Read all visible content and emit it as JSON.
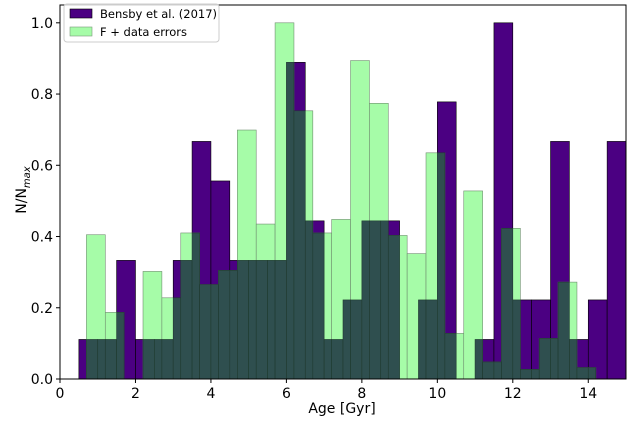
{
  "chart_data": {
    "type": "bar",
    "xlabel": "Age [Gyr]",
    "ylabel": "N/N",
    "ylabel_subscript": "max",
    "xlim": [
      0,
      15
    ],
    "ylim": [
      0,
      1.05
    ],
    "xticks": [
      0,
      2,
      4,
      6,
      8,
      10,
      12,
      14
    ],
    "yticks": [
      0.0,
      0.2,
      0.4,
      0.6,
      0.8,
      1.0
    ],
    "xtick_labels": [
      "0",
      "2",
      "4",
      "6",
      "8",
      "10",
      "12",
      "14"
    ],
    "ytick_labels": [
      "0.0",
      "0.2",
      "0.4",
      "0.6",
      "0.8",
      "1.0"
    ],
    "legend_position": "top-left",
    "grid": false,
    "bin_width": 0.5,
    "series": [
      {
        "name": "Bensby et al. (2017)",
        "color": "#4b0082",
        "bins": [
          {
            "x": 0.5,
            "value": 0.111
          },
          {
            "x": 1.0,
            "value": 0.111
          },
          {
            "x": 1.5,
            "value": 0.333
          },
          {
            "x": 2.0,
            "value": 0.111
          },
          {
            "x": 2.5,
            "value": 0.111
          },
          {
            "x": 3.0,
            "value": 0.333
          },
          {
            "x": 3.5,
            "value": 0.667
          },
          {
            "x": 4.0,
            "value": 0.556
          },
          {
            "x": 4.5,
            "value": 0.333
          },
          {
            "x": 5.0,
            "value": 0.333
          },
          {
            "x": 5.5,
            "value": 0.333
          },
          {
            "x": 6.0,
            "value": 0.889
          },
          {
            "x": 6.5,
            "value": 0.444
          },
          {
            "x": 7.0,
            "value": 0.111
          },
          {
            "x": 7.5,
            "value": 0.222
          },
          {
            "x": 8.0,
            "value": 0.444
          },
          {
            "x": 8.5,
            "value": 0.444
          },
          {
            "x": 9.0,
            "value": 0.0
          },
          {
            "x": 9.5,
            "value": 0.222
          },
          {
            "x": 10.0,
            "value": 0.778
          },
          {
            "x": 10.5,
            "value": 0.0
          },
          {
            "x": 11.0,
            "value": 0.111
          },
          {
            "x": 11.5,
            "value": 1.0
          },
          {
            "x": 12.0,
            "value": 0.222
          },
          {
            "x": 12.5,
            "value": 0.222
          },
          {
            "x": 13.0,
            "value": 0.667
          },
          {
            "x": 13.5,
            "value": 0.111
          },
          {
            "x": 14.0,
            "value": 0.222
          },
          {
            "x": 14.5,
            "value": 0.667
          }
        ]
      },
      {
        "name": "F + data errors",
        "color": "#a6fca8",
        "bins": [
          {
            "x": 0.5,
            "value": 0.0
          },
          {
            "x": 0.7,
            "value": 0.405
          },
          {
            "x": 1.2,
            "value": 0.187
          },
          {
            "x": 1.7,
            "value": 0.0
          },
          {
            "x": 2.2,
            "value": 0.302
          },
          {
            "x": 2.7,
            "value": 0.228
          },
          {
            "x": 3.2,
            "value": 0.41
          },
          {
            "x": 3.7,
            "value": 0.265
          },
          {
            "x": 4.2,
            "value": 0.305
          },
          {
            "x": 4.7,
            "value": 0.699
          },
          {
            "x": 5.2,
            "value": 0.435
          },
          {
            "x": 5.7,
            "value": 1.0
          },
          {
            "x": 6.2,
            "value": 0.753
          },
          {
            "x": 6.7,
            "value": 0.41
          },
          {
            "x": 7.2,
            "value": 0.448
          },
          {
            "x": 7.7,
            "value": 0.894
          },
          {
            "x": 8.2,
            "value": 0.774
          },
          {
            "x": 8.7,
            "value": 0.403
          },
          {
            "x": 9.2,
            "value": 0.352
          },
          {
            "x": 9.7,
            "value": 0.635
          },
          {
            "x": 10.2,
            "value": 0.128
          },
          {
            "x": 10.7,
            "value": 0.528
          },
          {
            "x": 11.2,
            "value": 0.048
          },
          {
            "x": 11.7,
            "value": 0.423
          },
          {
            "x": 12.2,
            "value": 0.027
          },
          {
            "x": 12.7,
            "value": 0.114
          },
          {
            "x": 13.2,
            "value": 0.272
          },
          {
            "x": 13.7,
            "value": 0.032
          }
        ]
      }
    ]
  }
}
